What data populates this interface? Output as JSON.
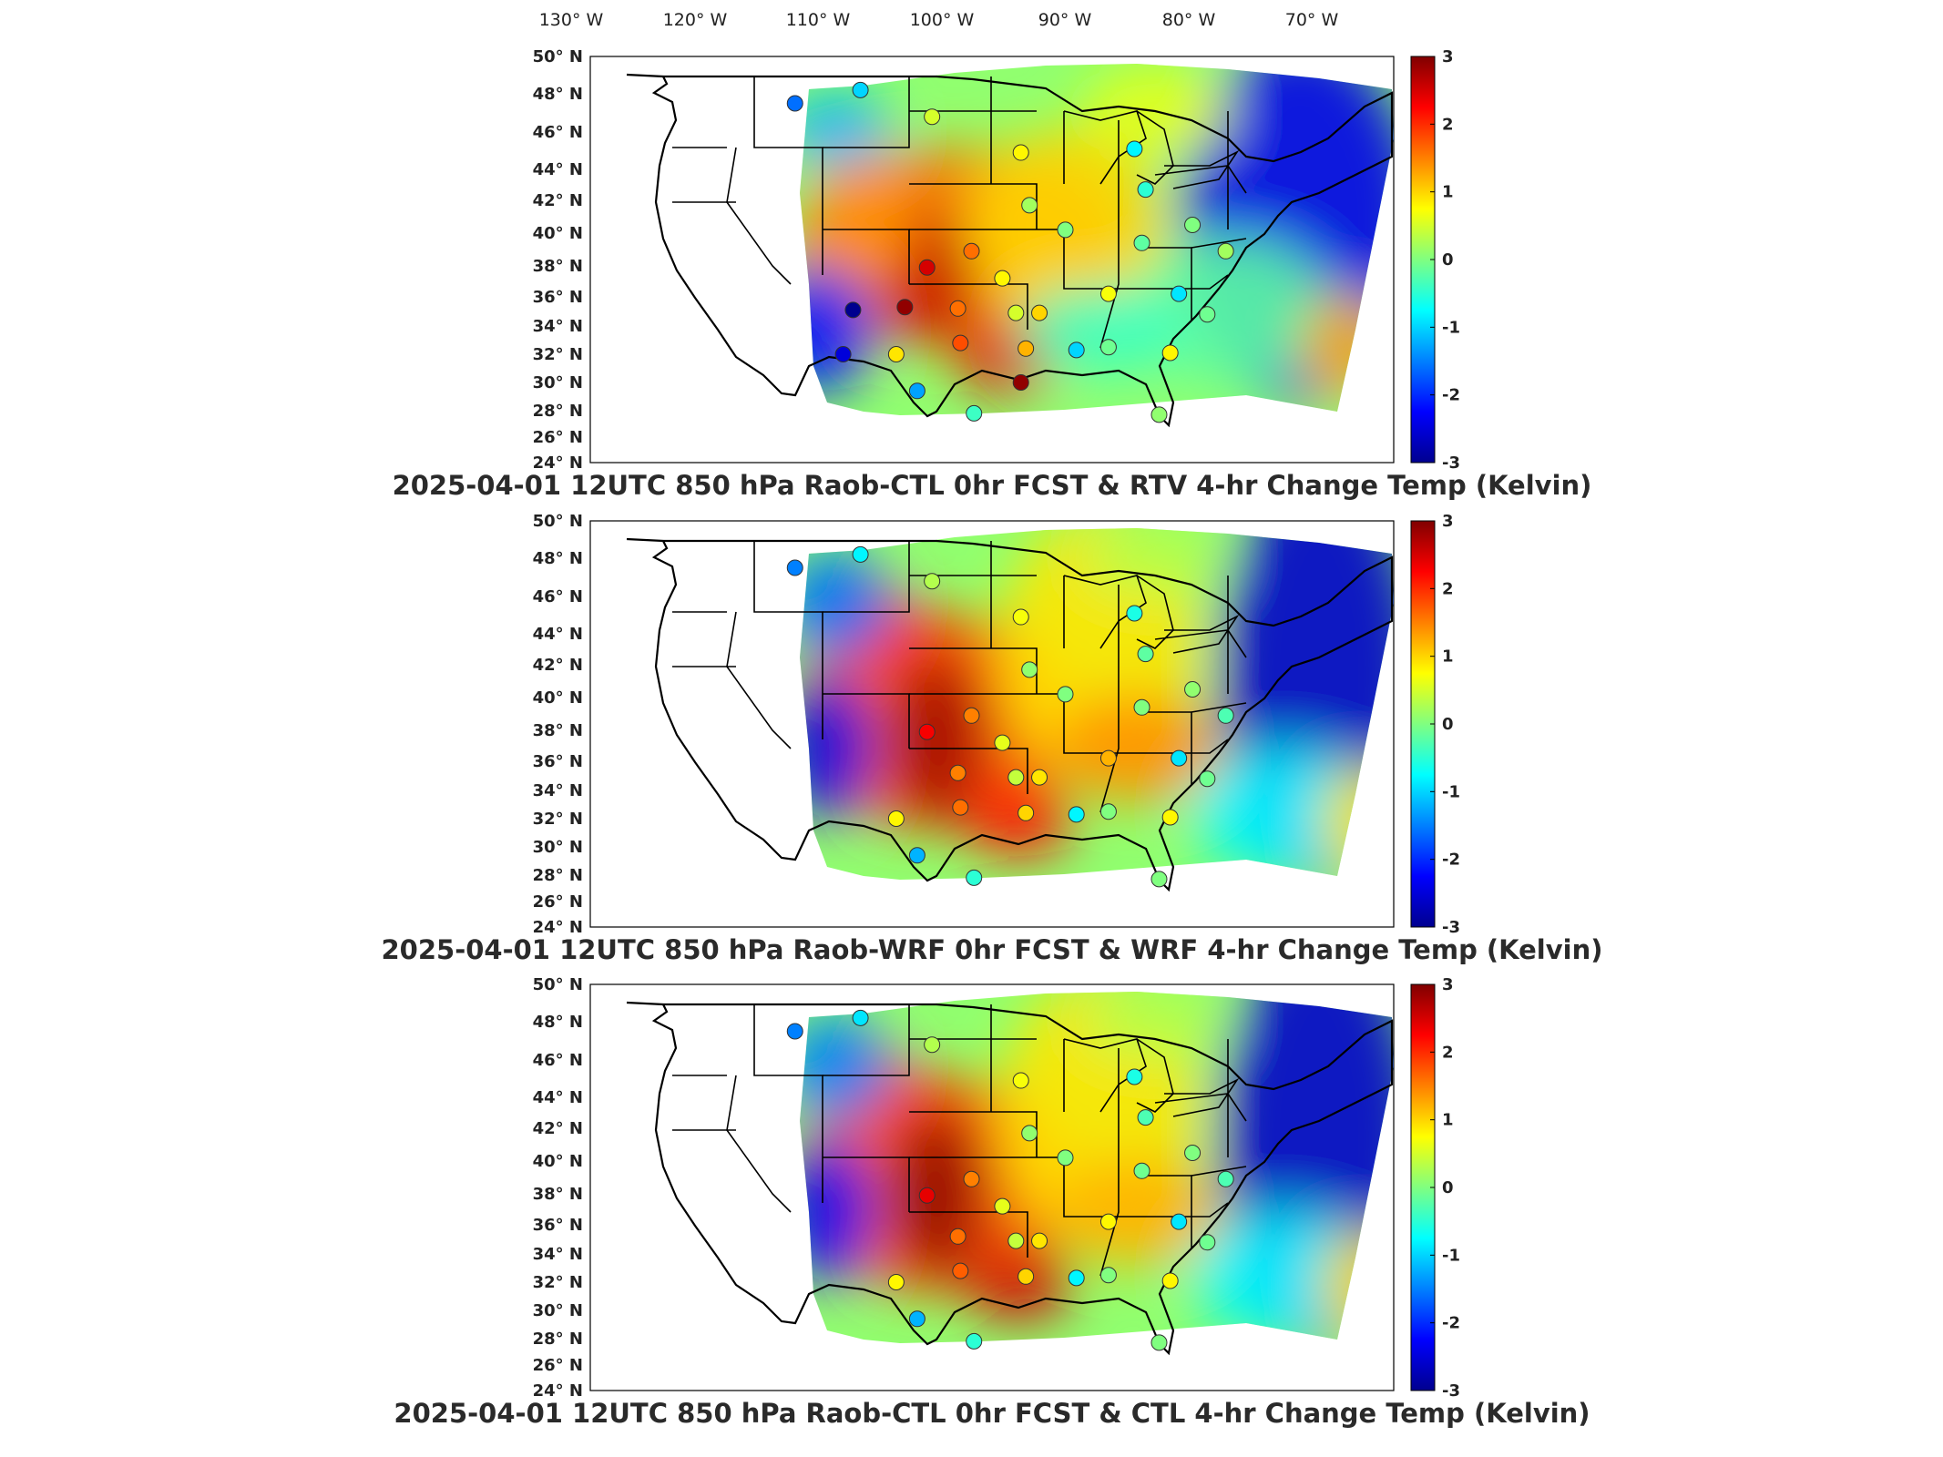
{
  "longitude_labels": [
    "130° W",
    "120° W",
    "110° W",
    "100° W",
    "90° W",
    "80° W",
    "70° W"
  ],
  "latitude_labels": [
    "50° N",
    "48° N",
    "46° N",
    "44° N",
    "42° N",
    "40° N",
    "38° N",
    "36° N",
    "34° N",
    "32° N",
    "30° N",
    "28° N",
    "26° N",
    "24° N"
  ],
  "colorbar": {
    "ticks": [
      "3",
      "2",
      "1",
      "0",
      "-1",
      "-2",
      "-3"
    ],
    "range": [
      -3,
      3
    ],
    "colors": [
      "#00008f",
      "#0000ff",
      "#0080ff",
      "#00ffff",
      "#80ff80",
      "#ffff00",
      "#ff8000",
      "#ff0000",
      "#800000"
    ]
  },
  "panels": [
    {
      "title": "2025-04-01 12UTC 850 hPa Raob-CTL 0hr FCST & RTV 4-hr Change Temp (Kelvin)",
      "field": "RTV 4-hr change temperature",
      "observations": [
        {
          "station": "s1",
          "lon": -111.9,
          "lat": 47.5,
          "value": -1.6
        },
        {
          "station": "s2",
          "lon": -106.6,
          "lat": 48.2,
          "value": -1.0
        },
        {
          "station": "s3",
          "lon": -100.8,
          "lat": 46.8,
          "value": 0.5
        },
        {
          "station": "s4",
          "lon": -93.6,
          "lat": 44.9,
          "value": 0.8
        },
        {
          "station": "s5",
          "lon": -84.4,
          "lat": 45.1,
          "value": -0.8
        },
        {
          "station": "s6",
          "lon": -83.5,
          "lat": 42.7,
          "value": -0.5
        },
        {
          "station": "s7",
          "lon": -92.9,
          "lat": 41.7,
          "value": 0.2
        },
        {
          "station": "s8",
          "lon": -90.0,
          "lat": 40.2,
          "value": 0.0
        },
        {
          "station": "s9",
          "lon": -83.8,
          "lat": 39.4,
          "value": -0.2
        },
        {
          "station": "s10",
          "lon": -79.7,
          "lat": 40.5,
          "value": 0.0
        },
        {
          "station": "s11",
          "lon": -77.0,
          "lat": 38.9,
          "value": 0.2
        },
        {
          "station": "s12",
          "lon": -97.6,
          "lat": 38.9,
          "value": 1.6
        },
        {
          "station": "s13",
          "lon": -101.2,
          "lat": 37.9,
          "value": 2.5
        },
        {
          "station": "s14",
          "lon": -95.1,
          "lat": 37.2,
          "value": 0.8
        },
        {
          "station": "s15",
          "lon": -103.0,
          "lat": 35.3,
          "value": 2.9
        },
        {
          "station": "s16",
          "lon": -98.7,
          "lat": 35.2,
          "value": 1.6
        },
        {
          "station": "s17",
          "lon": -94.0,
          "lat": 34.9,
          "value": 0.5
        },
        {
          "station": "s18",
          "lon": -86.5,
          "lat": 36.2,
          "value": 0.7
        },
        {
          "station": "s19",
          "lon": -80.8,
          "lat": 36.2,
          "value": -0.9
        },
        {
          "station": "s20",
          "lon": -78.5,
          "lat": 34.8,
          "value": -0.1
        },
        {
          "station": "s21",
          "lon": -92.1,
          "lat": 34.9,
          "value": 1.0
        },
        {
          "station": "s22",
          "lon": -98.5,
          "lat": 32.8,
          "value": 1.8
        },
        {
          "station": "s23",
          "lon": -103.7,
          "lat": 32.0,
          "value": 0.9
        },
        {
          "station": "s24",
          "lon": -108.0,
          "lat": 32.0,
          "value": -2.5
        },
        {
          "station": "s25",
          "lon": -107.2,
          "lat": 35.1,
          "value": -3.0
        },
        {
          "station": "s26",
          "lon": -89.1,
          "lat": 32.3,
          "value": -1.0
        },
        {
          "station": "s27",
          "lon": -86.5,
          "lat": 32.5,
          "value": -0.1
        },
        {
          "station": "s28",
          "lon": -93.2,
          "lat": 32.4,
          "value": 1.2
        },
        {
          "station": "s29",
          "lon": -81.5,
          "lat": 32.1,
          "value": 0.8
        },
        {
          "station": "s30",
          "lon": -93.6,
          "lat": 30.0,
          "value": 2.9
        },
        {
          "station": "s31",
          "lon": -102.0,
          "lat": 29.4,
          "value": -1.3
        },
        {
          "station": "s32",
          "lon": -97.4,
          "lat": 27.8,
          "value": -0.4
        },
        {
          "station": "s33",
          "lon": -82.4,
          "lat": 27.7,
          "value": 0.1
        }
      ]
    },
    {
      "title": "2025-04-01 12UTC 850 hPa Raob-WRF 0hr FCST & WRF 4-hr Change Temp (Kelvin)",
      "field": "WRF 4-hr change temperature",
      "observations": [
        {
          "station": "s1",
          "lon": -111.9,
          "lat": 47.5,
          "value": -1.5
        },
        {
          "station": "s2",
          "lon": -106.6,
          "lat": 48.2,
          "value": -0.8
        },
        {
          "station": "s3",
          "lon": -100.8,
          "lat": 46.8,
          "value": 0.3
        },
        {
          "station": "s4",
          "lon": -93.6,
          "lat": 44.9,
          "value": 0.7
        },
        {
          "station": "s5",
          "lon": -84.4,
          "lat": 45.1,
          "value": -0.6
        },
        {
          "station": "s6",
          "lon": -83.5,
          "lat": 42.7,
          "value": -0.2
        },
        {
          "station": "s7",
          "lon": -92.9,
          "lat": 41.7,
          "value": 0.1
        },
        {
          "station": "s8",
          "lon": -90.0,
          "lat": 40.2,
          "value": 0.0
        },
        {
          "station": "s9",
          "lon": -83.8,
          "lat": 39.4,
          "value": 0.0
        },
        {
          "station": "s10",
          "lon": -79.7,
          "lat": 40.5,
          "value": 0.1
        },
        {
          "station": "s11",
          "lon": -77.0,
          "lat": 38.9,
          "value": -0.3
        },
        {
          "station": "s12",
          "lon": -97.6,
          "lat": 38.9,
          "value": 1.5
        },
        {
          "station": "s13",
          "lon": -101.2,
          "lat": 37.9,
          "value": 2.3
        },
        {
          "station": "s14",
          "lon": -95.1,
          "lat": 37.2,
          "value": 0.6
        },
        {
          "station": "s16",
          "lon": -98.7,
          "lat": 35.2,
          "value": 1.5
        },
        {
          "station": "s17",
          "lon": -94.0,
          "lat": 34.9,
          "value": 0.4
        },
        {
          "station": "s18",
          "lon": -86.5,
          "lat": 36.2,
          "value": 1.2
        },
        {
          "station": "s19",
          "lon": -80.8,
          "lat": 36.2,
          "value": -0.9
        },
        {
          "station": "s20",
          "lon": -78.5,
          "lat": 34.8,
          "value": -0.1
        },
        {
          "station": "s21",
          "lon": -92.1,
          "lat": 34.9,
          "value": 0.9
        },
        {
          "station": "s22",
          "lon": -98.5,
          "lat": 32.8,
          "value": 1.6
        },
        {
          "station": "s23",
          "lon": -103.7,
          "lat": 32.0,
          "value": 0.8
        },
        {
          "station": "s26",
          "lon": -89.1,
          "lat": 32.3,
          "value": -0.8
        },
        {
          "station": "s27",
          "lon": -86.5,
          "lat": 32.5,
          "value": 0.0
        },
        {
          "station": "s28",
          "lon": -93.2,
          "lat": 32.4,
          "value": 1.0
        },
        {
          "station": "s29",
          "lon": -81.5,
          "lat": 32.1,
          "value": 0.8
        },
        {
          "station": "s31",
          "lon": -102.0,
          "lat": 29.4,
          "value": -1.2
        },
        {
          "station": "s32",
          "lon": -97.4,
          "lat": 27.8,
          "value": -0.5
        },
        {
          "station": "s33",
          "lon": -82.4,
          "lat": 27.7,
          "value": 0.0
        }
      ]
    },
    {
      "title": "2025-04-01 12UTC 850 hPa Raob-CTL 0hr FCST & CTL 4-hr Change Temp (Kelvin)",
      "field": "CTL 4-hr change temperature",
      "observations": [
        {
          "station": "s1",
          "lon": -111.9,
          "lat": 47.5,
          "value": -1.5
        },
        {
          "station": "s2",
          "lon": -106.6,
          "lat": 48.2,
          "value": -0.9
        },
        {
          "station": "s3",
          "lon": -100.8,
          "lat": 46.8,
          "value": 0.3
        },
        {
          "station": "s4",
          "lon": -93.6,
          "lat": 44.9,
          "value": 0.7
        },
        {
          "station": "s5",
          "lon": -84.4,
          "lat": 45.1,
          "value": -0.6
        },
        {
          "station": "s6",
          "lon": -83.5,
          "lat": 42.7,
          "value": -0.3
        },
        {
          "station": "s7",
          "lon": -92.9,
          "lat": 41.7,
          "value": 0.1
        },
        {
          "station": "s8",
          "lon": -90.0,
          "lat": 40.2,
          "value": 0.0
        },
        {
          "station": "s9",
          "lon": -83.8,
          "lat": 39.4,
          "value": -0.1
        },
        {
          "station": "s10",
          "lon": -79.7,
          "lat": 40.5,
          "value": 0.0
        },
        {
          "station": "s11",
          "lon": -77.0,
          "lat": 38.9,
          "value": -0.3
        },
        {
          "station": "s12",
          "lon": -97.6,
          "lat": 38.9,
          "value": 1.5
        },
        {
          "station": "s13",
          "lon": -101.2,
          "lat": 37.9,
          "value": 2.4
        },
        {
          "station": "s14",
          "lon": -95.1,
          "lat": 37.2,
          "value": 0.6
        },
        {
          "station": "s16",
          "lon": -98.7,
          "lat": 35.2,
          "value": 1.6
        },
        {
          "station": "s17",
          "lon": -94.0,
          "lat": 34.9,
          "value": 0.4
        },
        {
          "station": "s18",
          "lon": -86.5,
          "lat": 36.2,
          "value": 0.8
        },
        {
          "station": "s19",
          "lon": -80.8,
          "lat": 36.2,
          "value": -0.9
        },
        {
          "station": "s20",
          "lon": -78.5,
          "lat": 34.8,
          "value": -0.1
        },
        {
          "station": "s21",
          "lon": -92.1,
          "lat": 34.9,
          "value": 0.9
        },
        {
          "station": "s22",
          "lon": -98.5,
          "lat": 32.8,
          "value": 1.7
        },
        {
          "station": "s23",
          "lon": -103.7,
          "lat": 32.0,
          "value": 0.8
        },
        {
          "station": "s26",
          "lon": -89.1,
          "lat": 32.3,
          "value": -0.8
        },
        {
          "station": "s27",
          "lon": -86.5,
          "lat": 32.5,
          "value": 0.0
        },
        {
          "station": "s28",
          "lon": -93.2,
          "lat": 32.4,
          "value": 1.0
        },
        {
          "station": "s29",
          "lon": -81.5,
          "lat": 32.1,
          "value": 0.8
        },
        {
          "station": "s31",
          "lon": -102.0,
          "lat": 29.4,
          "value": -1.2
        },
        {
          "station": "s32",
          "lon": -97.4,
          "lat": 27.8,
          "value": -0.5
        },
        {
          "station": "s33",
          "lon": -82.4,
          "lat": 27.7,
          "value": 0.0
        }
      ]
    }
  ]
}
